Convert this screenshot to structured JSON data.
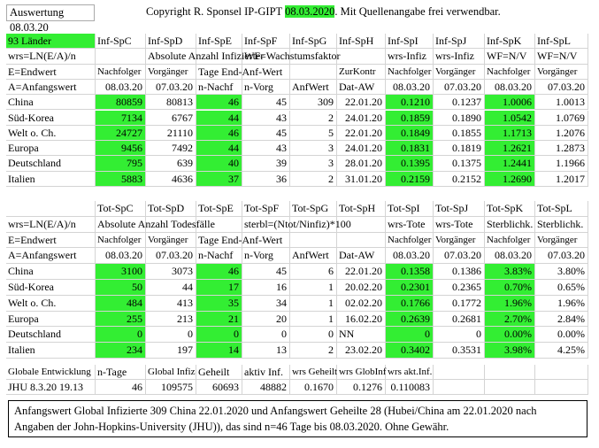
{
  "header": {
    "title": "Auswertung 08.03.20",
    "copyright": [
      "Copyright R. Sponsel IP-GIPT",
      "08.03.2020",
      ". Mit Quellenangabe frei verwendbar."
    ]
  },
  "infected": {
    "rows": [
      [
        "93 Länder",
        "Inf-SpC",
        "Inf-SpD",
        "Inf-SpE",
        "Inf-SpF",
        "Inf-SpG",
        "Inf-SpH",
        "Inf-SpI",
        "Inf-SpJ",
        "Inf-SpK",
        "Inf-SpL"
      ],
      [
        "wrs=LN(E/A)/n",
        null,
        "Absolute Anzahl Infizierter",
        null,
        "WF=Wachstumsfaktor",
        null,
        null,
        "wrs-Infiz",
        "wrs-Infiz",
        "WF=N/V",
        "WF=N/V"
      ],
      [
        "E=Endwert",
        "Nachfolger",
        "Vorgänger",
        "Tage End-Anf-Wert",
        null,
        null,
        "ZurKontr",
        "Nachfolger",
        "Vorgänger",
        "Nachfolger",
        "Vorgänger"
      ],
      [
        "A=Anfangswert",
        "08.03.20",
        "07.03.20",
        "n-Nachf",
        "n-Vorg",
        "AnfWert",
        "Dat-AW",
        "08.03.20",
        "07.03.20",
        "08.03.20",
        "07.03.20"
      ],
      [
        "China",
        "80859",
        "80813",
        "46",
        "45",
        "309",
        "22.01.20",
        "0.1210",
        "0.1237",
        "1.0006",
        "1.0013"
      ],
      [
        "Süd-Korea",
        "7134",
        "6767",
        "44",
        "43",
        "2",
        "24.01.20",
        "0.1859",
        "0.1890",
        "1.0542",
        "1.0769"
      ],
      [
        "Welt o. Ch.",
        "24727",
        "21110",
        "46",
        "45",
        "5",
        "22.01.20",
        "0.1849",
        "0.1855",
        "1.1713",
        "1.2076"
      ],
      [
        "Europa",
        "9456",
        "7492",
        "44",
        "43",
        "3",
        "24.01.20",
        "0.1831",
        "0.1819",
        "1.2621",
        "1.2873"
      ],
      [
        "Deutschland",
        "795",
        "639",
        "40",
        "39",
        "3",
        "28.01.20",
        "0.1395",
        "0.1375",
        "1.2441",
        "1.1966"
      ],
      [
        "Italien",
        "5883",
        "4636",
        "37",
        "36",
        "2",
        "31.01.20",
        "0.2159",
        "0.2152",
        "1.2690",
        "1.2017"
      ]
    ]
  },
  "deaths": {
    "rows": [
      [
        null,
        "Tot-SpC",
        "Tot-SpD",
        "Tot-SpE",
        "Tot-SpF",
        "Tot-SpG",
        "Tot-SpH",
        "Tot-SpI",
        "Tot-SpJ",
        "Tot-SpK",
        "Tot-SpL"
      ],
      [
        "wrs=LN(E/A)/n",
        "Absolute Anzahl Todesfälle",
        null,
        null,
        "sterbl=(Ntot/Ninfiz)*100",
        null,
        null,
        "wrs-Tote",
        "wrs-Tote",
        "Sterblichk.",
        "Sterblichk."
      ],
      [
        "E=Endwert",
        "Nachfolger",
        "Vorgänger",
        "Tage End-Anf-Wert",
        null,
        null,
        null,
        "Nachfolger",
        "Vorgänger",
        "Nachfolger",
        "Vorgänger"
      ],
      [
        "A=Anfangswert",
        "08.03.20",
        "07.03.20",
        "n-Nachf",
        "n-Vorg",
        "AnfWert",
        "Dat-AW",
        "08.03.20",
        "07.03.20",
        "08.03.20",
        "07.03.20"
      ],
      [
        "China",
        "3100",
        "3073",
        "46",
        "45",
        "6",
        "22.01.20",
        "0.1358",
        "0.1386",
        "3.83%",
        "3.80%"
      ],
      [
        "Süd-Korea",
        "50",
        "44",
        "17",
        "16",
        "1",
        "20.02.20",
        "0.2301",
        "0.2365",
        "0.70%",
        "0.65%"
      ],
      [
        "Welt o. Ch.",
        "484",
        "413",
        "35",
        "34",
        "1",
        "02.02.20",
        "0.1766",
        "0.1772",
        "1.96%",
        "1.96%"
      ],
      [
        "Europa",
        "255",
        "213",
        "21",
        "20",
        "1",
        "16.02.20",
        "0.2639",
        "0.2681",
        "2.70%",
        "2.84%"
      ],
      [
        "Deutschland",
        "0",
        "0",
        "0",
        "0",
        "0",
        "NN",
        "0",
        "0",
        "0.00%",
        "0.00%"
      ],
      [
        "Italien",
        "234",
        "197",
        "14",
        "13",
        "2",
        "23.02.20",
        "0.3402",
        "0.3531",
        "3.98%",
        "4.25%"
      ]
    ]
  },
  "global": {
    "rows": [
      [
        "Globale Entwicklung",
        "n-Tage",
        "Global Infiz",
        "Geheilt",
        "aktiv Inf.",
        "wrs Geheilt",
        "wrs GlobInf",
        "wrs akt.Inf.",
        null,
        null,
        null
      ],
      [
        "JHU 8.3.20 19.13",
        "46",
        "109575",
        "60693",
        "48882",
        "0.1670",
        "0.1276",
        "0.110083",
        null,
        null,
        null
      ]
    ]
  },
  "note": {
    "lines": [
      "Anfangswert Global Infizierte 309 China 22.01.2020 und Anfangswert Geheilte 28 (Hubei/China am 22.01.2020 nach",
      "Angaben der John-Hopkins-University (JHU)), das sind n=46 Tage bis 08.03.2020. Ohne Gewähr."
    ]
  }
}
